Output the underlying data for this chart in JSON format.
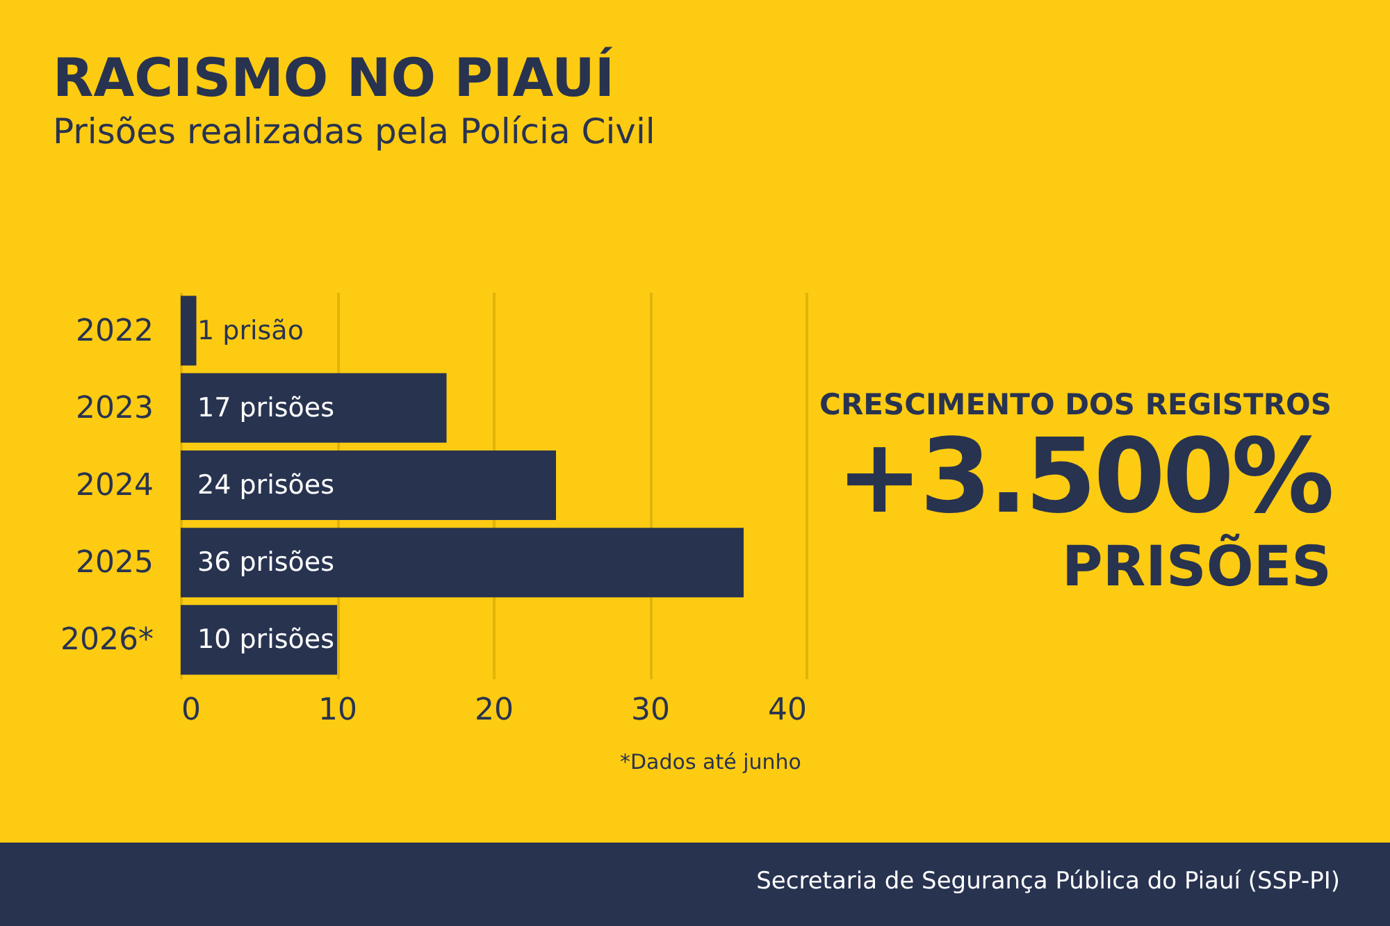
{
  "chart_data": {
    "type": "bar",
    "orientation": "horizontal",
    "title": "RACISMO NO PIAUÍ",
    "subtitle": "Prisões realizadas pela Polícia Civil",
    "categories": [
      "2022",
      "2023",
      "2024",
      "2025",
      "2026*"
    ],
    "values": [
      1,
      17,
      24,
      36,
      10
    ],
    "value_labels": [
      "1 prisão",
      "17 prisões",
      "24 prisões",
      "36 prisões",
      "10 prisões"
    ],
    "color": "#283350",
    "xlim": [
      0,
      40
    ],
    "xticks": [
      0,
      10,
      20,
      30,
      40
    ],
    "grid": "x",
    "annotations": [
      "*Dados até junho",
      "CRESCIMENTO DOS REGISTROS",
      "+3.500%",
      "PRISÕES",
      "Secretaria de Segurança Pública do Piauí (SSP-PI)"
    ]
  }
}
